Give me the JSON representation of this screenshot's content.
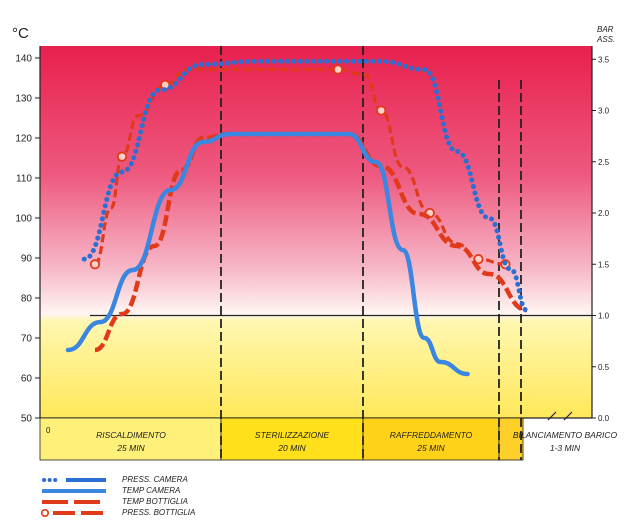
{
  "chart_data": {
    "type": "line",
    "y_unit_left": "°C",
    "y_unit_right_line1": "BAR",
    "y_unit_right_line2": "ASS.",
    "ylim_left": [
      50,
      145
    ],
    "ylim_right": [
      0,
      3.75
    ],
    "left_ticks": [
      "140",
      "130",
      "120",
      "110",
      "100",
      "90",
      "80",
      "70",
      "60",
      "50"
    ],
    "right_ticks": [
      "3.5",
      "3.0",
      "2.5",
      "2.0",
      "1.5",
      "1.0",
      "0.5",
      "0.0"
    ],
    "origin_label": "0",
    "reference_line_bar": 1.0,
    "phases": [
      {
        "name": "RISCALDIMENTO",
        "duration": "25 MIN"
      },
      {
        "name": "STERILIZZAZIONE",
        "duration": "20 MIN"
      },
      {
        "name": "RAFFREDDAMENTO",
        "duration": "25 MIN"
      },
      {
        "name": "BILANCIAMENTO BARICO",
        "duration": "1-3 MIN"
      }
    ],
    "series": [
      {
        "name": "PRESS. CAMERA",
        "axis": "right",
        "color": "#2a6fd1",
        "style": "dotted",
        "points": [
          [
            3,
            1.55
          ],
          [
            10,
            2.4
          ],
          [
            17,
            3.2
          ],
          [
            25,
            3.45
          ],
          [
            35,
            3.48
          ],
          [
            58,
            3.48
          ],
          [
            66,
            3.4
          ],
          [
            72,
            2.6
          ],
          [
            78,
            1.95
          ],
          [
            82,
            1.45
          ],
          [
            85,
            1.05
          ]
        ]
      },
      {
        "name": "TEMP CAMERA",
        "axis": "left",
        "color": "#3a86e0",
        "style": "solid",
        "points": [
          [
            0,
            67
          ],
          [
            6,
            74
          ],
          [
            12,
            87
          ],
          [
            19,
            107
          ],
          [
            25,
            119
          ],
          [
            30,
            121
          ],
          [
            45,
            121
          ],
          [
            52,
            121
          ],
          [
            57,
            114
          ],
          [
            62,
            92
          ],
          [
            66,
            70
          ],
          [
            69,
            64
          ],
          [
            74,
            61
          ]
        ]
      },
      {
        "name": "TEMP BOTTIGLIA",
        "axis": "left",
        "color": "#e03a1a",
        "style": "dashed",
        "points": [
          [
            5,
            67
          ],
          [
            10,
            76
          ],
          [
            16,
            93
          ],
          [
            21,
            112
          ],
          [
            25,
            120
          ],
          [
            30,
            121
          ],
          [
            45,
            121
          ],
          [
            52,
            121
          ],
          [
            58,
            113
          ],
          [
            65,
            101
          ],
          [
            72,
            93
          ],
          [
            78,
            86
          ],
          [
            85,
            77
          ]
        ]
      },
      {
        "name": "PRESS. BOTTIGLIA",
        "axis": "right",
        "color": "#e03a1a",
        "style": "dash-circle",
        "points": [
          [
            5,
            1.5
          ],
          [
            8,
            2.05
          ],
          [
            10,
            2.55
          ],
          [
            13,
            2.95
          ],
          [
            18,
            3.25
          ],
          [
            22,
            3.4
          ],
          [
            50,
            3.4
          ],
          [
            55,
            3.35
          ],
          [
            58,
            3.0
          ],
          [
            62,
            2.45
          ],
          [
            67,
            2.0
          ],
          [
            72,
            1.7
          ],
          [
            76,
            1.55
          ],
          [
            81,
            1.5
          ]
        ]
      }
    ],
    "legend": [
      {
        "label": "PRESS. CAMERA",
        "color": "#2a6fd1",
        "style": "dotted"
      },
      {
        "label": "TEMP CAMERA",
        "color": "#3a86e0",
        "style": "solid"
      },
      {
        "label": "TEMP BOTTIGLIA",
        "color": "#e03a1a",
        "style": "dashed"
      },
      {
        "label": "PRESS. BOTTIGLIA",
        "color": "#e03a1a",
        "style": "dash-circle"
      }
    ]
  }
}
